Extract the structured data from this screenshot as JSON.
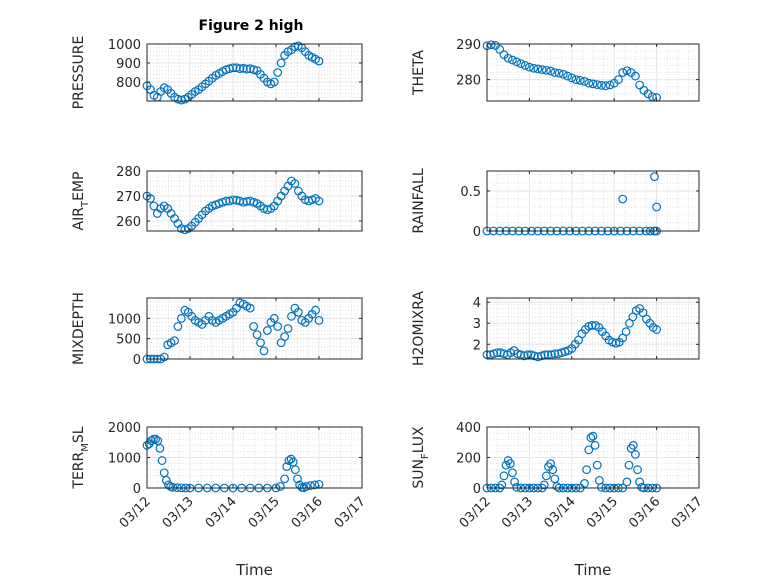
{
  "figure": {
    "title": "Figure 2 high"
  },
  "chart_data": [
    {
      "type": "scatter",
      "ylabel": "PRESSURE",
      "xlim": [
        0,
        5
      ],
      "ylim": [
        700,
        1000
      ],
      "yticks": [
        800,
        900,
        1000
      ],
      "x": [
        0.0,
        0.08,
        0.16,
        0.24,
        0.32,
        0.4,
        0.48,
        0.56,
        0.64,
        0.72,
        0.8,
        0.88,
        0.96,
        1.04,
        1.12,
        1.2,
        1.28,
        1.36,
        1.44,
        1.52,
        1.6,
        1.68,
        1.76,
        1.84,
        1.92,
        2.0,
        2.08,
        2.16,
        2.24,
        2.32,
        2.4,
        2.48,
        2.56,
        2.64,
        2.72,
        2.8,
        2.88,
        2.96,
        3.04,
        3.12,
        3.2,
        3.28,
        3.36,
        3.44,
        3.52,
        3.6,
        3.68,
        3.76,
        3.84,
        3.92,
        4.0
      ],
      "y": [
        780,
        760,
        730,
        720,
        750,
        770,
        760,
        740,
        720,
        710,
        705,
        710,
        720,
        735,
        750,
        760,
        775,
        790,
        805,
        820,
        835,
        845,
        855,
        865,
        870,
        875,
        875,
        870,
        872,
        868,
        870,
        865,
        860,
        840,
        820,
        800,
        790,
        800,
        850,
        900,
        940,
        960,
        970,
        985,
        990,
        980,
        960,
        940,
        930,
        920,
        910
      ]
    },
    {
      "type": "scatter",
      "ylabel": "THETA",
      "xlim": [
        0,
        5
      ],
      "ylim": [
        274,
        290
      ],
      "yticks": [
        280,
        290
      ],
      "x": [
        0.0,
        0.1,
        0.2,
        0.3,
        0.4,
        0.5,
        0.6,
        0.7,
        0.8,
        0.9,
        1.0,
        1.1,
        1.2,
        1.3,
        1.4,
        1.5,
        1.6,
        1.7,
        1.8,
        1.9,
        2.0,
        2.1,
        2.2,
        2.3,
        2.4,
        2.5,
        2.6,
        2.7,
        2.8,
        2.9,
        3.0,
        3.1,
        3.2,
        3.3,
        3.4,
        3.5,
        3.6,
        3.7,
        3.8,
        3.9,
        4.0
      ],
      "y": [
        289.5,
        289.8,
        289.6,
        288.5,
        287,
        286,
        285.5,
        285,
        284.5,
        284,
        283.5,
        283.2,
        283,
        282.8,
        282.6,
        282.4,
        282,
        281.8,
        281.5,
        281,
        280.5,
        280,
        279.8,
        279.5,
        279,
        278.8,
        278.6,
        278.4,
        278.3,
        278.5,
        279,
        280,
        282,
        282.5,
        282,
        281,
        278.5,
        277,
        276,
        275.2,
        275
      ]
    },
    {
      "type": "scatter",
      "ylabel_main": "AIR",
      "ylabel_sub": "T",
      "ylabel_rest": "EMP",
      "xlim": [
        0,
        5
      ],
      "ylim": [
        256,
        280
      ],
      "yticks": [
        260,
        270,
        280
      ],
      "x": [
        0.0,
        0.08,
        0.16,
        0.24,
        0.32,
        0.4,
        0.48,
        0.56,
        0.64,
        0.72,
        0.8,
        0.88,
        0.96,
        1.04,
        1.12,
        1.2,
        1.28,
        1.36,
        1.44,
        1.52,
        1.6,
        1.68,
        1.76,
        1.84,
        1.92,
        2.0,
        2.08,
        2.16,
        2.24,
        2.32,
        2.4,
        2.48,
        2.56,
        2.64,
        2.72,
        2.8,
        2.88,
        2.96,
        3.04,
        3.12,
        3.2,
        3.28,
        3.36,
        3.44,
        3.52,
        3.6,
        3.68,
        3.76,
        3.84,
        3.92,
        4.0
      ],
      "y": [
        270,
        269,
        266,
        263,
        265,
        266,
        265,
        263,
        261,
        259,
        257,
        256.5,
        257,
        258,
        259.5,
        261,
        262.5,
        264,
        265,
        266,
        266.5,
        267,
        267.5,
        268,
        268,
        268.5,
        268.3,
        268,
        267.5,
        267.8,
        268,
        267.5,
        267,
        266,
        265,
        264.5,
        265,
        266,
        268,
        270,
        272,
        274,
        276,
        275,
        272,
        270,
        268.5,
        268,
        268.5,
        269,
        268
      ]
    },
    {
      "type": "scatter",
      "ylabel": "RAINFALL",
      "xlim": [
        0,
        5
      ],
      "ylim": [
        0,
        0.75
      ],
      "yticks": [
        0,
        0.5
      ],
      "ytick_labels": [
        "0",
        "0.5"
      ],
      "x": [
        0.0,
        0.15,
        0.3,
        0.45,
        0.6,
        0.75,
        0.9,
        1.05,
        1.2,
        1.35,
        1.5,
        1.65,
        1.8,
        1.95,
        2.1,
        2.25,
        2.4,
        2.55,
        2.7,
        2.85,
        3.0,
        3.15,
        3.3,
        3.45,
        3.6,
        3.75,
        3.85,
        3.95,
        4.0,
        3.2,
        3.95,
        4.0,
        3.95
      ],
      "y": [
        0,
        0,
        0,
        0,
        0,
        0,
        0,
        0,
        0,
        0,
        0,
        0,
        0,
        0,
        0,
        0,
        0,
        0,
        0,
        0,
        0,
        0,
        0,
        0,
        0,
        0,
        0,
        0,
        0,
        0.4,
        0.68,
        0.3,
        0.0
      ]
    },
    {
      "type": "scatter",
      "ylabel": "MIXDEPTH",
      "xlim": [
        0,
        5
      ],
      "ylim": [
        0,
        1500
      ],
      "yticks": [
        0,
        500,
        1000
      ],
      "x": [
        0.0,
        0.08,
        0.16,
        0.24,
        0.32,
        0.4,
        0.48,
        0.56,
        0.64,
        0.72,
        0.8,
        0.88,
        0.96,
        1.04,
        1.12,
        1.2,
        1.28,
        1.36,
        1.44,
        1.52,
        1.6,
        1.68,
        1.76,
        1.84,
        1.92,
        2.0,
        2.08,
        2.16,
        2.24,
        2.32,
        2.4,
        2.48,
        2.56,
        2.64,
        2.72,
        2.8,
        2.88,
        2.96,
        3.04,
        3.12,
        3.2,
        3.28,
        3.36,
        3.44,
        3.52,
        3.6,
        3.68,
        3.76,
        3.84,
        3.92,
        4.0
      ],
      "y": [
        0,
        0,
        0,
        0,
        0,
        50,
        350,
        400,
        450,
        800,
        1000,
        1200,
        1150,
        1050,
        950,
        900,
        850,
        950,
        1050,
        950,
        900,
        950,
        1000,
        1050,
        1100,
        1150,
        1250,
        1380,
        1350,
        1300,
        1250,
        800,
        600,
        400,
        200,
        700,
        900,
        1000,
        800,
        400,
        550,
        750,
        1050,
        1250,
        1150,
        950,
        900,
        1000,
        1100,
        1200,
        950
      ]
    },
    {
      "type": "scatter",
      "ylabel": "H2OMIXRA",
      "xlim": [
        0,
        5
      ],
      "ylim": [
        1.3,
        4.2
      ],
      "yticks": [
        2,
        3,
        4
      ],
      "x": [
        0.0,
        0.08,
        0.16,
        0.24,
        0.32,
        0.4,
        0.48,
        0.56,
        0.64,
        0.72,
        0.8,
        0.88,
        0.96,
        1.04,
        1.12,
        1.2,
        1.28,
        1.36,
        1.44,
        1.52,
        1.6,
        1.68,
        1.76,
        1.84,
        1.92,
        2.0,
        2.08,
        2.16,
        2.24,
        2.32,
        2.4,
        2.48,
        2.56,
        2.64,
        2.72,
        2.8,
        2.88,
        2.96,
        3.04,
        3.12,
        3.2,
        3.28,
        3.36,
        3.44,
        3.52,
        3.6,
        3.68,
        3.76,
        3.84,
        3.92,
        4.0
      ],
      "y": [
        1.5,
        1.5,
        1.55,
        1.6,
        1.6,
        1.55,
        1.5,
        1.6,
        1.7,
        1.55,
        1.5,
        1.45,
        1.5,
        1.5,
        1.45,
        1.4,
        1.45,
        1.5,
        1.5,
        1.5,
        1.55,
        1.55,
        1.6,
        1.65,
        1.7,
        1.8,
        2.0,
        2.2,
        2.5,
        2.7,
        2.85,
        2.9,
        2.9,
        2.8,
        2.6,
        2.4,
        2.2,
        2.1,
        2.05,
        2.1,
        2.3,
        2.6,
        3.0,
        3.3,
        3.6,
        3.7,
        3.5,
        3.2,
        3.0,
        2.8,
        2.7
      ]
    },
    {
      "type": "scatter",
      "ylabel_main": "TERR",
      "ylabel_sub": "M",
      "ylabel_rest": "SL",
      "xlim": [
        0,
        5
      ],
      "ylim": [
        0,
        2000
      ],
      "yticks": [
        0,
        1000,
        2000
      ],
      "x": [
        0.0,
        0.05,
        0.1,
        0.15,
        0.2,
        0.25,
        0.3,
        0.35,
        0.4,
        0.45,
        0.5,
        0.55,
        0.6,
        0.7,
        0.8,
        0.9,
        1.0,
        1.2,
        1.4,
        1.6,
        1.8,
        2.0,
        2.2,
        2.4,
        2.6,
        2.8,
        3.0,
        3.1,
        3.2,
        3.25,
        3.3,
        3.35,
        3.4,
        3.45,
        3.5,
        3.55,
        3.6,
        3.65,
        3.7,
        3.8,
        3.9,
        4.0
      ],
      "y": [
        1400,
        1450,
        1550,
        1600,
        1600,
        1550,
        1300,
        900,
        500,
        250,
        100,
        50,
        20,
        10,
        5,
        0,
        0,
        0,
        0,
        0,
        0,
        0,
        0,
        0,
        0,
        0,
        0,
        50,
        300,
        700,
        900,
        950,
        850,
        600,
        300,
        100,
        20,
        10,
        50,
        80,
        100,
        120
      ]
    },
    {
      "type": "scatter",
      "ylabel_main": "SUN",
      "ylabel_sub": "F",
      "ylabel_rest": "LUX",
      "xlim": [
        0,
        5
      ],
      "ylim": [
        0,
        400
      ],
      "yticks": [
        0,
        200,
        400
      ],
      "x": [
        0.0,
        0.1,
        0.2,
        0.3,
        0.35,
        0.4,
        0.45,
        0.5,
        0.55,
        0.6,
        0.65,
        0.7,
        0.8,
        0.9,
        1.0,
        1.1,
        1.2,
        1.3,
        1.35,
        1.4,
        1.45,
        1.5,
        1.55,
        1.6,
        1.65,
        1.7,
        1.8,
        1.9,
        2.0,
        2.1,
        2.2,
        2.3,
        2.35,
        2.4,
        2.45,
        2.5,
        2.55,
        2.6,
        2.65,
        2.7,
        2.8,
        2.9,
        3.0,
        3.1,
        3.2,
        3.3,
        3.35,
        3.4,
        3.45,
        3.5,
        3.55,
        3.6,
        3.65,
        3.7,
        3.8,
        3.9,
        4.0
      ],
      "y": [
        0,
        0,
        0,
        0,
        20,
        80,
        150,
        180,
        160,
        100,
        40,
        5,
        0,
        0,
        0,
        0,
        0,
        0,
        20,
        80,
        140,
        160,
        120,
        60,
        10,
        0,
        0,
        0,
        0,
        0,
        0,
        30,
        120,
        250,
        330,
        340,
        280,
        150,
        50,
        5,
        0,
        0,
        0,
        0,
        0,
        40,
        150,
        260,
        280,
        220,
        120,
        40,
        5,
        0,
        0,
        0,
        0
      ]
    }
  ],
  "x_axis": {
    "tick_labels": [
      "03/12",
      "03/13",
      "03/14",
      "03/15",
      "03/16",
      "03/17"
    ],
    "label": "Time"
  }
}
